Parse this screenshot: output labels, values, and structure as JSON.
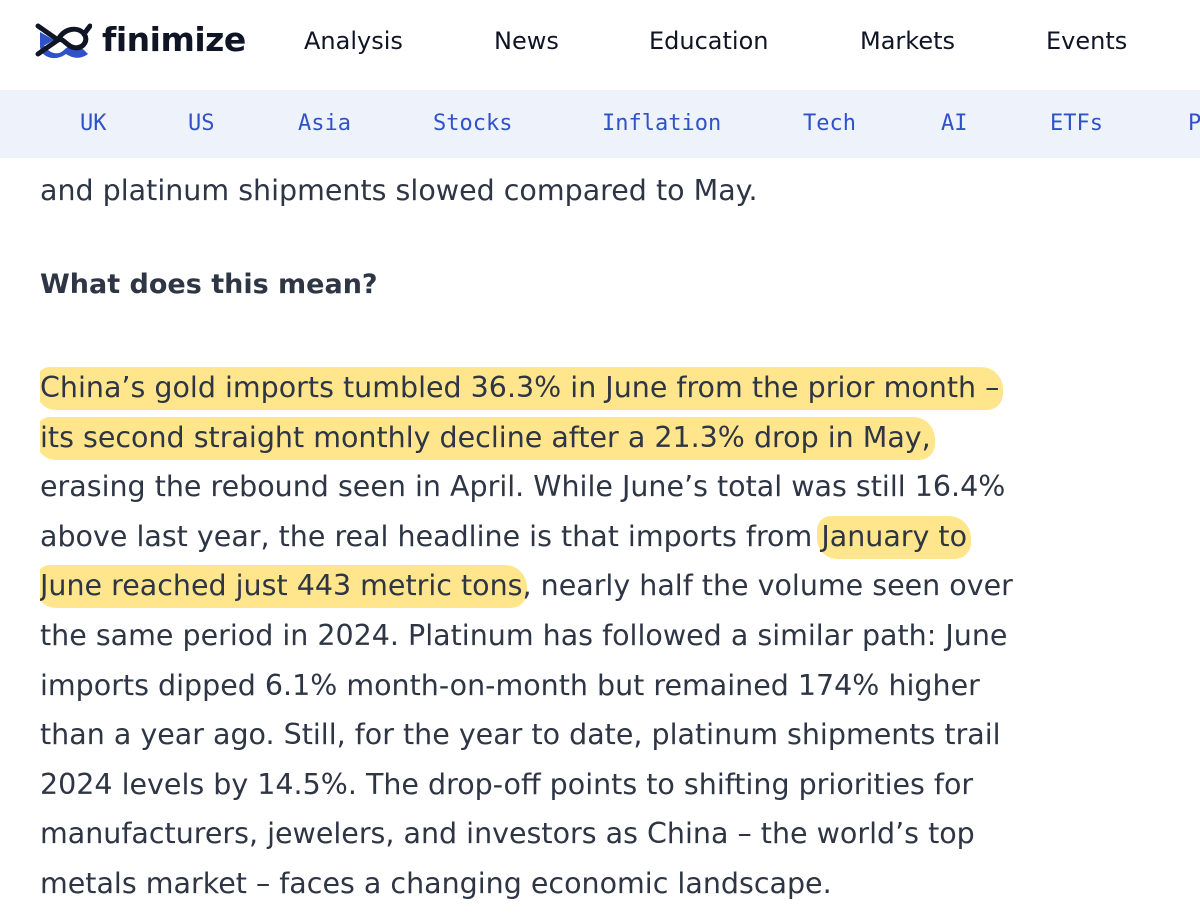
{
  "header": {
    "logo_text": "finimize",
    "logo_icon": "finimize-logo-icon",
    "nav": [
      {
        "label": "Analysis"
      },
      {
        "label": "News"
      },
      {
        "label": "Education"
      },
      {
        "label": "Markets"
      },
      {
        "label": "Events"
      }
    ]
  },
  "categories": [
    {
      "label": "UK"
    },
    {
      "label": "US"
    },
    {
      "label": "Asia"
    },
    {
      "label": "Stocks"
    },
    {
      "label": "Inflation"
    },
    {
      "label": "Tech"
    },
    {
      "label": "AI"
    },
    {
      "label": "ETFs"
    },
    {
      "label": "P"
    }
  ],
  "article": {
    "prev_paragraph_tail": "and platinum shipments slowed compared to May.",
    "heading": "What does this mean?",
    "lines": [
      [
        {
          "text": "China’s gold imports tumbled 36.3% in June from the prior month –",
          "highlight": true
        }
      ],
      [
        {
          "text": "its second straight monthly decline after a 21.3% drop in May,",
          "highlight": true
        }
      ],
      [
        {
          "text": "erasing the rebound seen in April. While June’s total was still 16.4%",
          "highlight": false
        }
      ],
      [
        {
          "text": "above last year, the real headline is that imports from ",
          "highlight": false
        },
        {
          "text": "January to",
          "highlight": true
        }
      ],
      [
        {
          "text": "June reached just 443 metric tons",
          "highlight": true
        },
        {
          "text": ", nearly half the volume seen over",
          "highlight": false
        }
      ],
      [
        {
          "text": "the same period in 2024. Platinum has followed a similar path: June",
          "highlight": false
        }
      ],
      [
        {
          "text": "imports dipped 6.1% month-on-month but remained 174% higher",
          "highlight": false
        }
      ],
      [
        {
          "text": "than a year ago. Still, for the year to date, platinum shipments trail",
          "highlight": false
        }
      ],
      [
        {
          "text": "2024 levels by 14.5%. The drop-off points to shifting priorities for",
          "highlight": false
        }
      ],
      [
        {
          "text": "manufacturers, jewelers, and investors as China – the world’s top",
          "highlight": false
        }
      ],
      [
        {
          "text": "metals market – faces a changing economic landscape.",
          "highlight": false
        }
      ]
    ]
  },
  "colors": {
    "brand_dark": "#0f1525",
    "brand_blue": "#2f52c9",
    "category_bg": "#eef2fb",
    "body_text": "#2e3544",
    "highlight": "#ffd646"
  }
}
